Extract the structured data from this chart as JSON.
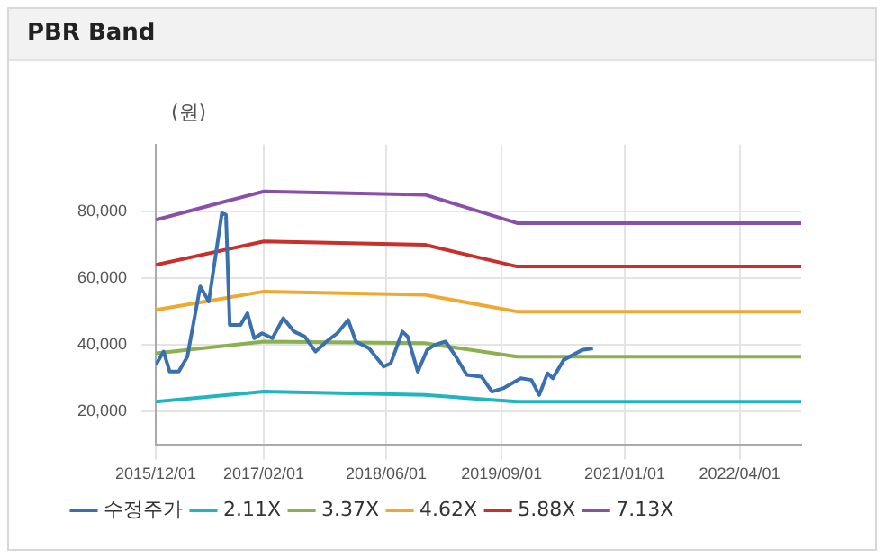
{
  "chart_data": {
    "type": "line",
    "title": "PBR Band",
    "ylabel": "(원)",
    "xlim": [
      "2015-12-01",
      "2022-12-01"
    ],
    "xticks": [
      {
        "value": "2015-12-01",
        "label": "2015/12/01"
      },
      {
        "value": "2017-02-01",
        "label": "2017/02/01"
      },
      {
        "value": "2018-06-01",
        "label": "2018/06/01"
      },
      {
        "value": "2019-09-01",
        "label": "2019/09/01"
      },
      {
        "value": "2021-01-01",
        "label": "2021/01/01"
      },
      {
        "value": "2022-04-01",
        "label": "2022/04/01"
      }
    ],
    "ylim": [
      10000,
      100000
    ],
    "yticks": [
      {
        "value": 20000,
        "label": "20,000"
      },
      {
        "value": 40000,
        "label": "40,000"
      },
      {
        "value": 60000,
        "label": "60,000"
      },
      {
        "value": 80000,
        "label": "80,000"
      }
    ],
    "grid": true,
    "legend": "bottom",
    "marker": "none",
    "line_style": "solid",
    "series": [
      {
        "name": "수정주가",
        "color": "#3a6fb0",
        "x": [
          "2015-12-01",
          "2016-01-01",
          "2016-01-25",
          "2016-03-01",
          "2016-04-04",
          "2016-05-25",
          "2016-06-28",
          "2016-08-19",
          "2016-09-04",
          "2016-09-19",
          "2016-11-01",
          "2016-11-28",
          "2016-12-25",
          "2017-01-25",
          "2017-03-07",
          "2017-04-19",
          "2017-06-01",
          "2017-07-13",
          "2017-08-25",
          "2017-10-07",
          "2017-11-19",
          "2018-01-01",
          "2018-02-01",
          "2018-03-25",
          "2018-05-22",
          "2018-06-19",
          "2018-08-04",
          "2018-08-25",
          "2018-10-04",
          "2018-11-10",
          "2018-12-10",
          "2019-01-22",
          "2019-03-04",
          "2019-04-16",
          "2019-06-13",
          "2019-07-25",
          "2019-09-07",
          "2019-11-16",
          "2019-12-28",
          "2020-01-28",
          "2020-03-01",
          "2020-03-22",
          "2020-05-04",
          "2020-07-16",
          "2020-08-28"
        ],
        "values": [
          34000,
          38000,
          32000,
          32000,
          36500,
          57500,
          53000,
          79500,
          79000,
          46000,
          46000,
          49500,
          42000,
          43500,
          42000,
          48000,
          44000,
          42500,
          38000,
          41000,
          43500,
          47500,
          41000,
          39000,
          33500,
          34500,
          44000,
          42500,
          32000,
          38500,
          40000,
          41000,
          36500,
          31000,
          30500,
          26000,
          27000,
          30000,
          29500,
          25000,
          31500,
          30000,
          35500,
          38500,
          39000
        ]
      },
      {
        "name": "2.11X",
        "color": "#22b5c0",
        "x": [
          "2015-12-01",
          "2017-02-01",
          "2018-11-01",
          "2019-11-01",
          "2022-12-01"
        ],
        "values": [
          23000,
          26000,
          25000,
          23000,
          23000
        ]
      },
      {
        "name": "3.37X",
        "color": "#8cb050",
        "x": [
          "2015-12-01",
          "2017-02-01",
          "2018-11-01",
          "2019-11-01",
          "2022-12-01"
        ],
        "values": [
          37500,
          41000,
          40500,
          36500,
          36500
        ]
      },
      {
        "name": "4.62X",
        "color": "#f0a830",
        "x": [
          "2015-12-01",
          "2017-02-01",
          "2018-11-01",
          "2019-11-01",
          "2022-12-01"
        ],
        "values": [
          50500,
          56000,
          55000,
          50000,
          50000
        ]
      },
      {
        "name": "5.88X",
        "color": "#c8302c",
        "x": [
          "2015-12-01",
          "2017-02-01",
          "2018-11-01",
          "2019-11-01",
          "2022-12-01"
        ],
        "values": [
          64000,
          71000,
          70000,
          63500,
          63500
        ]
      },
      {
        "name": "7.13X",
        "color": "#8a4fa8",
        "x": [
          "2015-12-01",
          "2017-02-01",
          "2018-11-01",
          "2019-11-01",
          "2022-12-01"
        ],
        "values": [
          77500,
          86000,
          85000,
          76500,
          76500
        ]
      }
    ]
  }
}
